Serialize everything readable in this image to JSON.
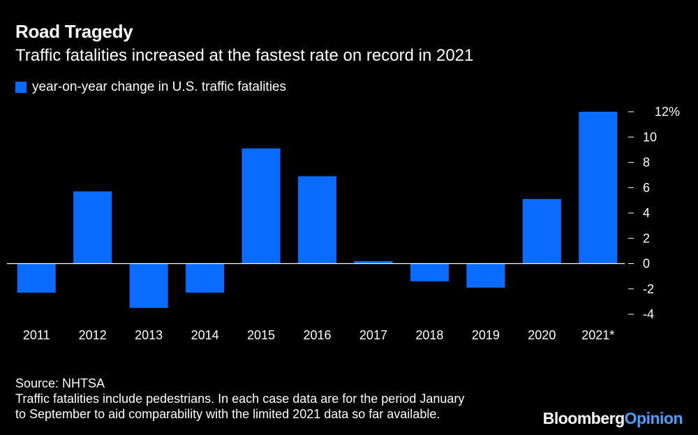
{
  "chart_data": {
    "type": "bar",
    "title": "Road Tragedy",
    "subtitle": "Traffic fatalities increased at the fastest rate on record in 2021",
    "legend": [
      {
        "name": "year-on-year change in U.S. traffic fatalities",
        "color": "#0a6cff"
      }
    ],
    "categories": [
      "2011",
      "2012",
      "2013",
      "2014",
      "2015",
      "2016",
      "2017",
      "2018",
      "2019",
      "2020",
      "2021*"
    ],
    "values": [
      -2.3,
      5.7,
      -3.5,
      -2.3,
      9.1,
      6.9,
      0.2,
      -1.4,
      -1.9,
      5.1,
      12.0
    ],
    "ylim": [
      -4,
      12
    ],
    "yticks": [
      -4,
      -2,
      0,
      2,
      4,
      6,
      8,
      10,
      12
    ],
    "ytick_labels": [
      "-4",
      "-2",
      "0",
      "2",
      "4",
      "6",
      "8",
      "10",
      "12%"
    ],
    "xlabel": "",
    "ylabel": "",
    "bar_color": "#0a6cff",
    "axis_position": "right"
  },
  "footer": {
    "source": "Source: NHTSA",
    "note_line1": "Traffic fatalities include pedestrians. In each case data are for the period January",
    "note_line2": "to September to aid comparability with the limited 2021 data so far available."
  },
  "branding": {
    "logo_primary": "Bloomberg",
    "logo_secondary": "Opinion"
  }
}
